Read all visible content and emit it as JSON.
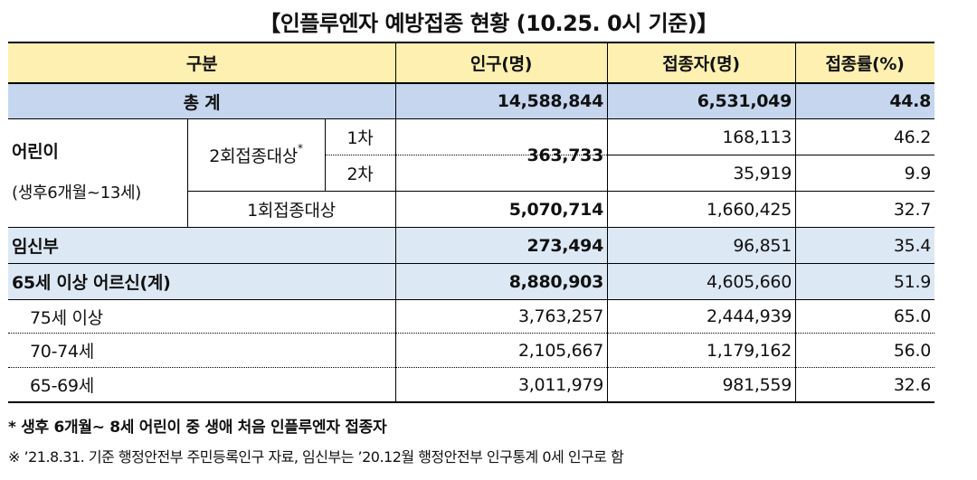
{
  "title": "【인플루엔자 예방접종 현황 (10.25. 0시 기준)】",
  "colors": {
    "header_bg": "#fdf0b0",
    "total_bg": "#c6d6ee",
    "group_bg": "#dde8f5",
    "border": "#000000"
  },
  "table": {
    "headers": {
      "category": "구분",
      "population": "인구(명)",
      "vaccinated": "접종자(명)",
      "rate": "접종률(%)"
    },
    "total": {
      "label": "총 계",
      "population": "14,588,844",
      "vaccinated": "6,531,049",
      "rate": "44.8"
    },
    "children": {
      "label": "어린이",
      "sublabel": "(생후6개월~13세)",
      "two_dose": {
        "label": "2회접종대상",
        "mark": "*",
        "population": "363,733",
        "first": {
          "label": "1차",
          "vaccinated": "168,113",
          "rate": "46.2"
        },
        "second": {
          "label": "2차",
          "vaccinated": "35,919",
          "rate": "9.9"
        }
      },
      "one_dose": {
        "label": "1회접종대상",
        "population": "5,070,714",
        "vaccinated": "1,660,425",
        "rate": "32.7"
      }
    },
    "pregnant": {
      "label": "임신부",
      "population": "273,494",
      "vaccinated": "96,851",
      "rate": "35.4"
    },
    "elderly": {
      "label": "65세 이상 어르신(계)",
      "population": "8,880,903",
      "vaccinated": "4,605,660",
      "rate": "51.9",
      "rows": [
        {
          "label": "75세 이상",
          "population": "3,763,257",
          "vaccinated": "2,444,939",
          "rate": "65.0"
        },
        {
          "label": "70-74세",
          "population": "2,105,667",
          "vaccinated": "1,179,162",
          "rate": "56.0"
        },
        {
          "label": "65-69세",
          "population": "3,011,979",
          "vaccinated": "981,559",
          "rate": "32.6"
        }
      ]
    }
  },
  "notes": {
    "footnote": "* 생후 6개월~ 8세 어린이 중 생애 처음 인플루엔자 접종자",
    "source": "※ ’21.8.31. 기준 행정안전부 주민등록인구 자료, 임신부는 ’20.12월 행정안전부 인구통계 0세 인구로 함"
  }
}
